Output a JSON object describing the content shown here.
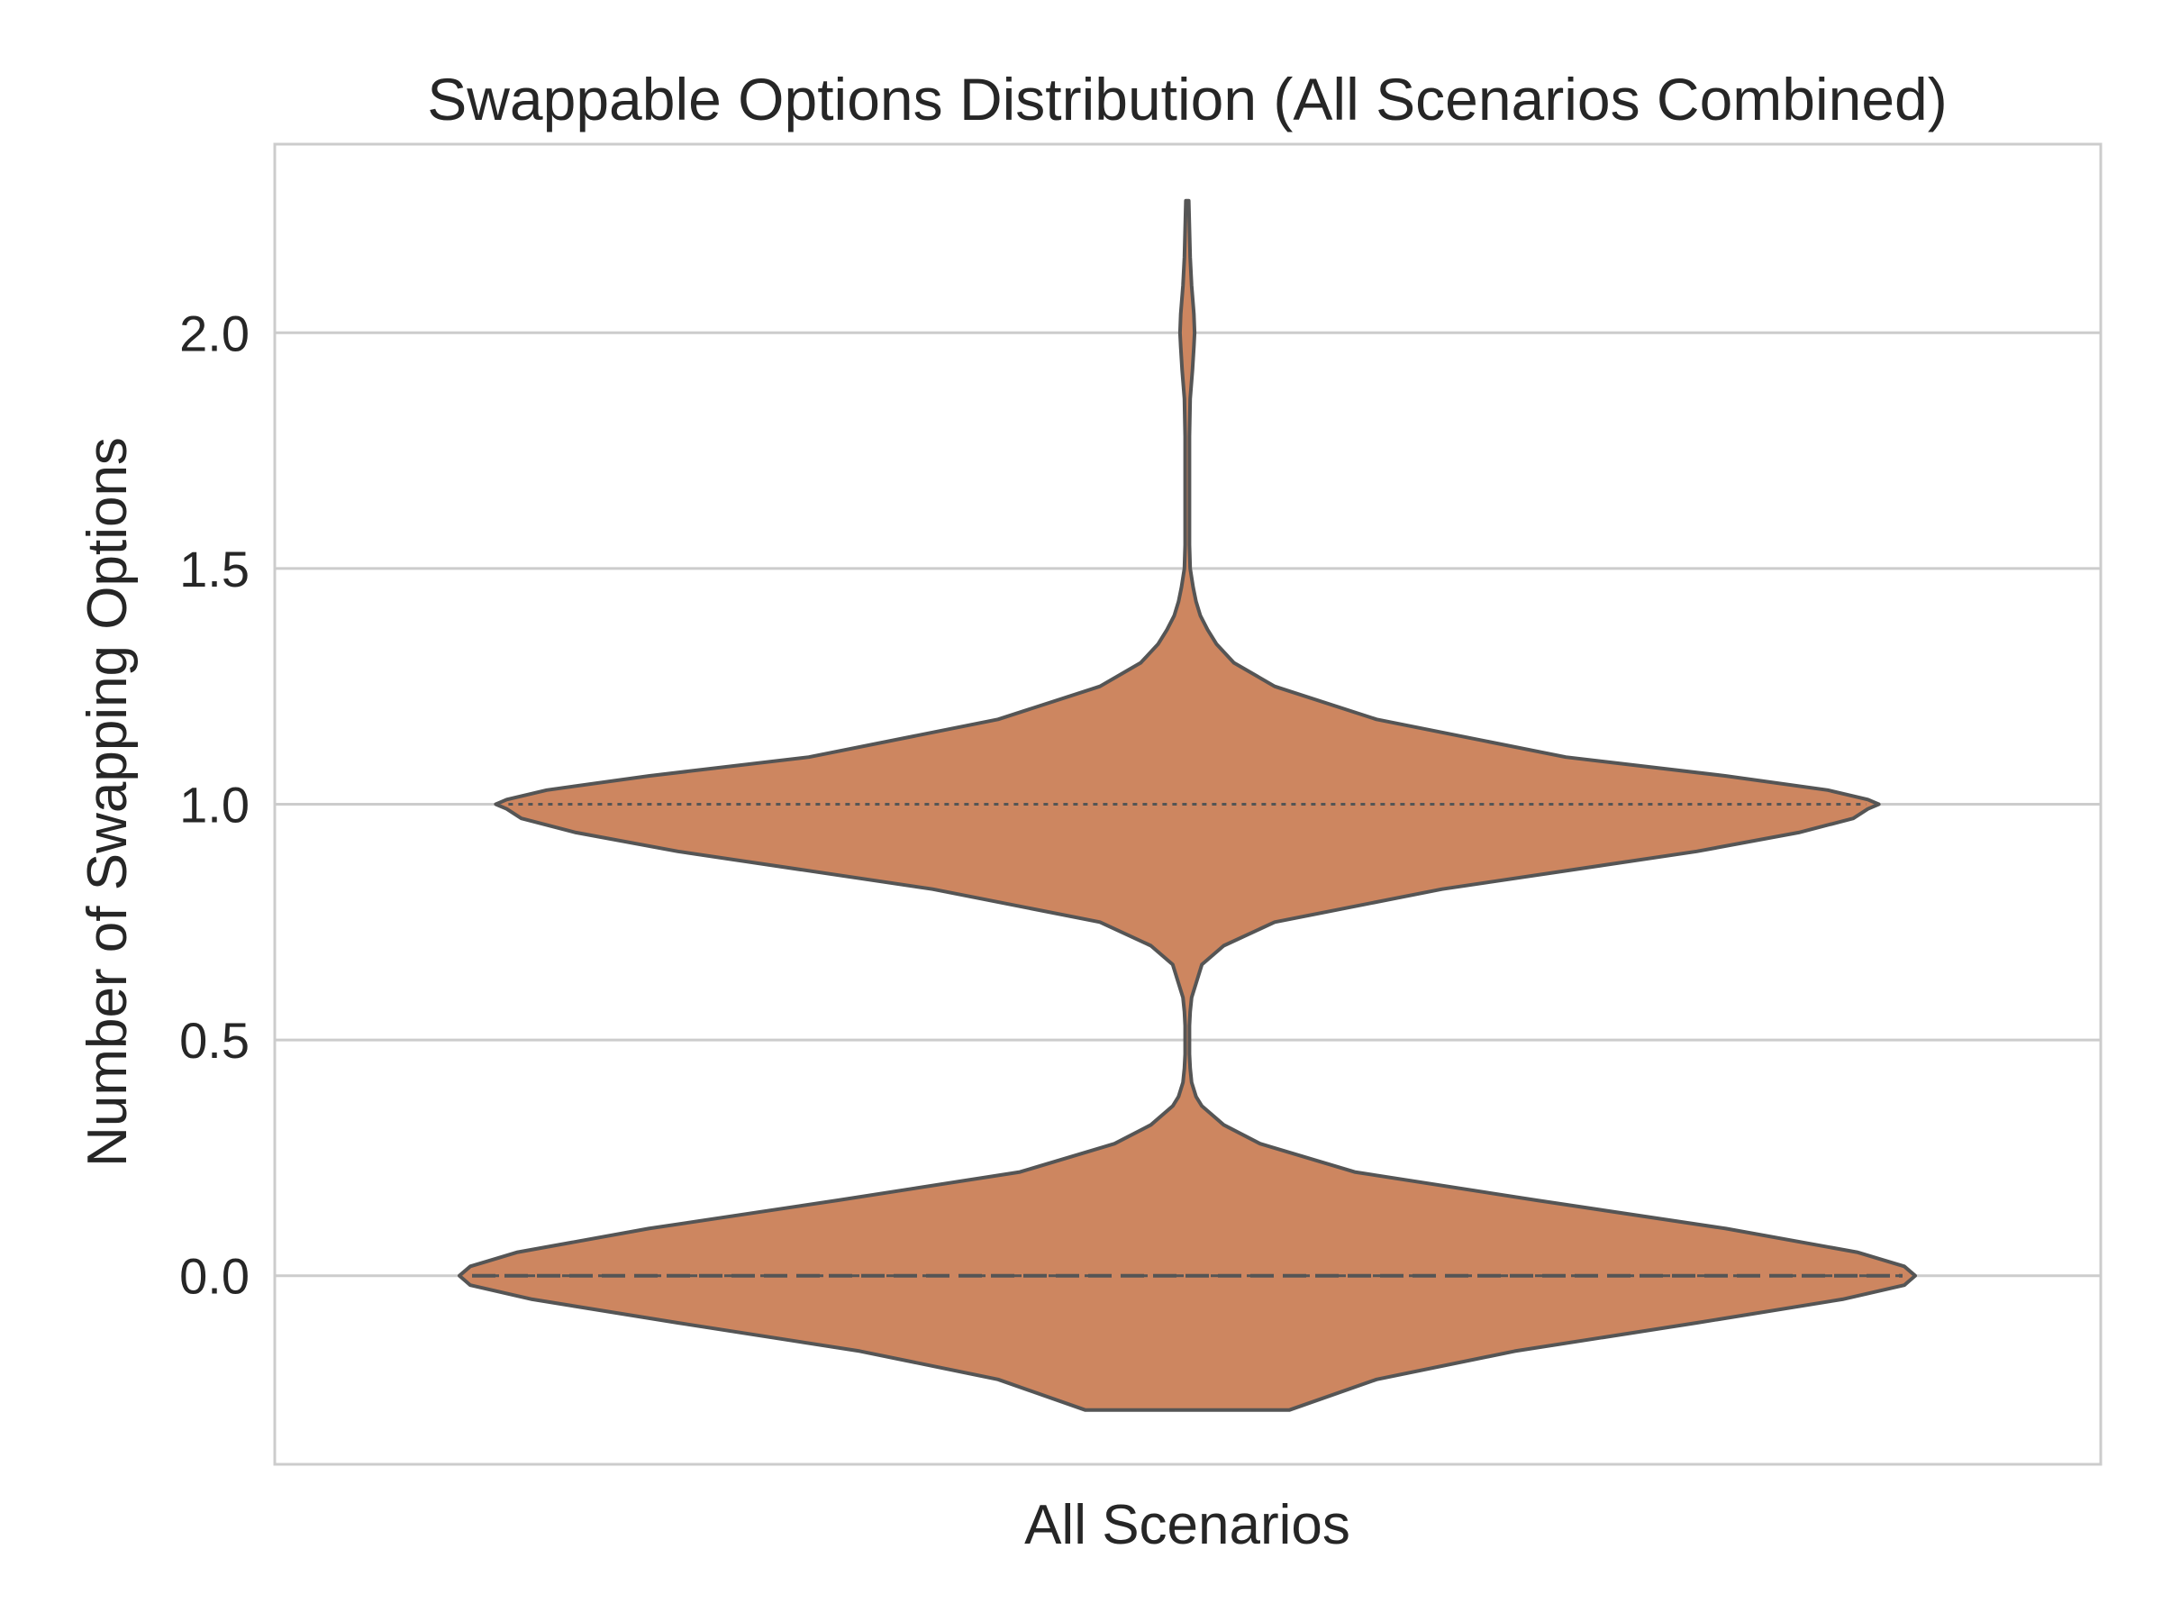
{
  "chart_data": {
    "type": "violin",
    "title": "Swappable Options Distribution (All Scenarios Combined)",
    "xlabel": "",
    "ylabel": "Number of Swapping Options",
    "categories": [
      "All Scenarios"
    ],
    "ylim": [
      -0.4,
      2.4
    ],
    "yticks": [
      {
        "value": 0.0,
        "label": "0.0"
      },
      {
        "value": 0.5,
        "label": "0.5"
      },
      {
        "value": 1.0,
        "label": "1.0"
      },
      {
        "value": 1.5,
        "label": "1.5"
      },
      {
        "value": 2.0,
        "label": "2.0"
      }
    ],
    "grid": "horizontal",
    "fill_color": "#cd8660",
    "edge_color": "#555555",
    "grid_color": "#cccccc",
    "inner": "quartile",
    "quartiles": {
      "q1": 0.0,
      "median": 0.0,
      "q3": 1.0
    },
    "density_profile": {
      "note_values_are_relative_half_widths": true,
      "y": [
        -0.285,
        -0.22,
        -0.16,
        -0.1,
        -0.05,
        -0.02,
        0.0,
        0.02,
        0.05,
        0.1,
        0.16,
        0.22,
        0.28,
        0.32,
        0.36,
        0.38,
        0.41,
        0.44,
        0.47,
        0.5,
        0.53,
        0.56,
        0.59,
        0.62,
        0.66,
        0.7,
        0.75,
        0.82,
        0.9,
        0.94,
        0.97,
        0.99,
        1.0,
        1.01,
        1.03,
        1.06,
        1.1,
        1.18,
        1.25,
        1.3,
        1.34,
        1.37,
        1.4,
        1.43,
        1.46,
        1.5,
        1.55,
        1.62,
        1.7,
        1.78,
        1.86,
        1.92,
        1.97,
        2.0,
        2.04,
        2.1,
        2.16,
        2.22,
        2.28
      ],
      "half_width": [
        0.14,
        0.26,
        0.45,
        0.7,
        0.9,
        0.985,
        1.0,
        0.985,
        0.92,
        0.74,
        0.48,
        0.23,
        0.1,
        0.05,
        0.02,
        0.012,
        0.006,
        0.004,
        0.003,
        0.003,
        0.003,
        0.004,
        0.006,
        0.012,
        0.02,
        0.05,
        0.12,
        0.35,
        0.7,
        0.84,
        0.915,
        0.935,
        0.95,
        0.935,
        0.88,
        0.74,
        0.52,
        0.26,
        0.12,
        0.064,
        0.04,
        0.028,
        0.018,
        0.012,
        0.008,
        0.004,
        0.003,
        0.003,
        0.003,
        0.003,
        0.004,
        0.007,
        0.009,
        0.01,
        0.009,
        0.006,
        0.004,
        0.003,
        0.002
      ]
    }
  }
}
